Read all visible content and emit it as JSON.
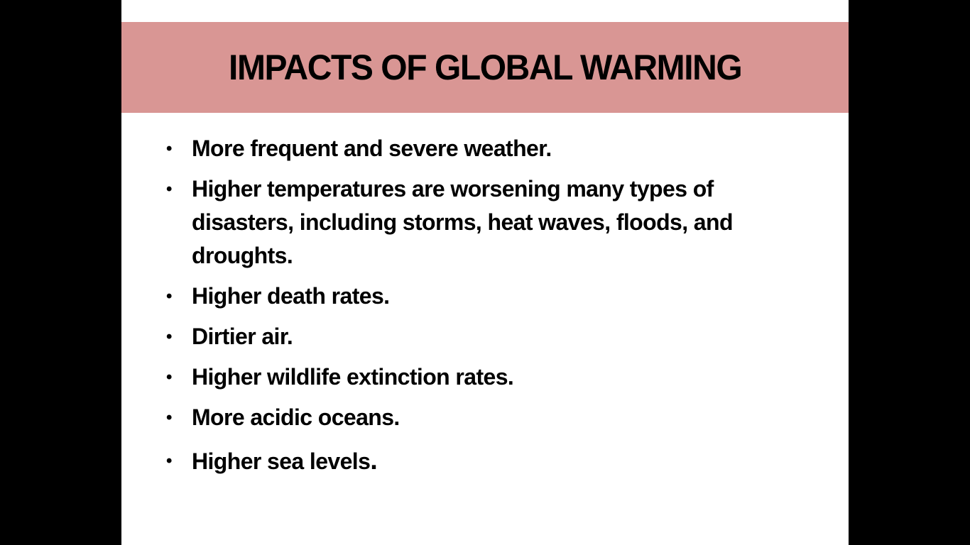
{
  "slide": {
    "title": "IMPACTS OF GLOBAL WARMING",
    "bullets": [
      "More frequent and severe weather.",
      "Higher temperatures are worsening many types of disasters, including storms, heat waves, floods, and droughts.",
      "Higher death rates.",
      "Dirtier air.",
      "Higher wildlife extinction rates.",
      "More acidic oceans."
    ],
    "last_bullet_text": "Higher sea levels",
    "last_bullet_period": "."
  },
  "colors": {
    "title_bar": "#d99694",
    "background": "#000000",
    "slide": "#ffffff"
  }
}
